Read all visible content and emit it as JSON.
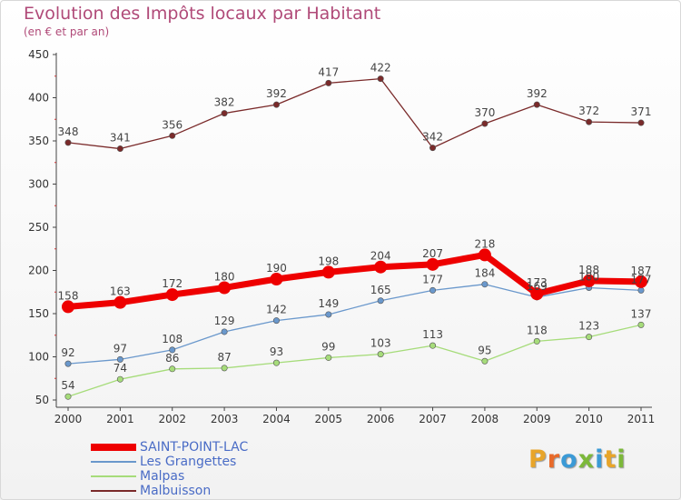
{
  "title": "Evolution des Impôts locaux par Habitant",
  "subtitle": "(en € et par an)",
  "logo": {
    "text": "Proxiti",
    "letter_colors": [
      "#e8a52a",
      "#e86a2a",
      "#3b9ad6",
      "#7cb83a",
      "#3b9ad6",
      "#e8a52a",
      "#7cb83a"
    ]
  },
  "chart_data": {
    "type": "line",
    "title": "Evolution des Impôts locaux par Habitant",
    "subtitle": "(en € et par an)",
    "xlabel": "",
    "ylabel": "",
    "x": [
      "2000",
      "2001",
      "2002",
      "2003",
      "2004",
      "2005",
      "2006",
      "2007",
      "2008",
      "2009",
      "2010",
      "2011"
    ],
    "ylim": [
      50,
      450
    ],
    "yticks": [
      50,
      100,
      150,
      200,
      250,
      300,
      350,
      400,
      450
    ],
    "grid": false,
    "legend_position": "bottom-left",
    "series": [
      {
        "name": "SAINT-POINT-LAC",
        "color": "#ee0000",
        "width": 7,
        "marker": 7,
        "values": [
          158,
          163,
          172,
          180,
          190,
          198,
          204,
          207,
          218,
          173,
          188,
          187
        ]
      },
      {
        "name": "Les Grangettes",
        "color": "#6a98cc",
        "width": 1.3,
        "marker": 3.2,
        "values": [
          92,
          97,
          108,
          129,
          142,
          149,
          165,
          177,
          184,
          169,
          180,
          177
        ]
      },
      {
        "name": "Malpas",
        "color": "#a6dc7a",
        "width": 1.3,
        "marker": 3.2,
        "values": [
          54,
          74,
          86,
          87,
          93,
          99,
          103,
          113,
          95,
          118,
          123,
          137
        ]
      },
      {
        "name": "Malbuisson",
        "color": "#7a2a2a",
        "width": 1.3,
        "marker": 3.2,
        "values": [
          348,
          341,
          356,
          382,
          392,
          417,
          422,
          342,
          370,
          392,
          372,
          371
        ]
      }
    ]
  }
}
